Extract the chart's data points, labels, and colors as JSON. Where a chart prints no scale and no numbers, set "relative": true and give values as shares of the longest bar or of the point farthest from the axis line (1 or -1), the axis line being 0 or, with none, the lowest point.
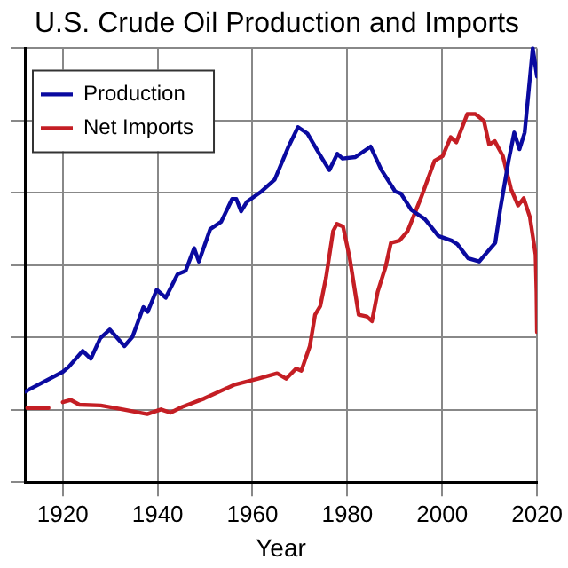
{
  "chart_data": {
    "type": "line",
    "title": "U.S. Crude Oil Production and Imports",
    "xlabel": "Year",
    "relative": true,
    "xlim": [
      1912,
      2020
    ],
    "xticks": [
      1920,
      1940,
      1960,
      1980,
      2000,
      2020
    ],
    "grid": true,
    "legend": "top left",
    "marker": "none",
    "line_style": "solid",
    "series": [
      {
        "name": "Production",
        "color": "#0a0aa0",
        "x": [
          1912,
          1920,
          1921.2,
          1924.2,
          1925.9,
          1927.9,
          1929.9,
          1933,
          1934.7,
          1937,
          1937.9,
          1939.8,
          1941.7,
          1944.2,
          1945.9,
          1947.7,
          1948.7,
          1951.1,
          1953.4,
          1955.7,
          1956.6,
          1957.6,
          1958.8,
          1961.9,
          1964.7,
          1967.6,
          1969.6,
          1971.6,
          1974.1,
          1976.2,
          1977.9,
          1979,
          1981.7,
          1984.9,
          1987.2,
          1990.1,
          1991.3,
          1993.5,
          1996.4,
          1999.2,
          2002,
          2003.2,
          2005.5,
          2007.8,
          2009.5,
          2011.2,
          2012.3,
          2014,
          2015.2,
          2016.3,
          2017.4,
          2019.1,
          2020
        ],
        "values": [
          0.05,
          0.105,
          0.118,
          0.163,
          0.141,
          0.198,
          0.222,
          0.176,
          0.202,
          0.284,
          0.271,
          0.332,
          0.31,
          0.375,
          0.384,
          0.447,
          0.41,
          0.5,
          0.52,
          0.583,
          0.583,
          0.549,
          0.575,
          0.604,
          0.637,
          0.728,
          0.782,
          0.764,
          0.708,
          0.663,
          0.708,
          0.695,
          0.699,
          0.728,
          0.663,
          0.604,
          0.598,
          0.553,
          0.527,
          0.481,
          0.468,
          0.458,
          0.419,
          0.41,
          0.436,
          0.462,
          0.559,
          0.689,
          0.767,
          0.721,
          0.767,
          1,
          0.922
        ]
      },
      {
        "name": "Net Imports",
        "color": "#c41e24",
        "x": [
          1912.5,
          1917,
          1918.5,
          1920,
          1921.7,
          1923.5,
          1928,
          1932.7,
          1937.8,
          1940.7,
          1942.7,
          1945.2,
          1949.8,
          1956.1,
          1961.2,
          1965.2,
          1967.1,
          1969.2,
          1970.3,
          1972.1,
          1973.2,
          1974.3,
          1975.5,
          1977,
          1977.8,
          1979.1,
          1980.5,
          1982.4,
          1984.1,
          1985.2,
          1986.4,
          1988.1,
          1989.2,
          1991,
          1992.7,
          1995.5,
          1998.4,
          2000.1,
          2001.8,
          2003,
          2005.3,
          2007,
          2008.8,
          2009.9,
          2011.1,
          2012.8,
          2014.5,
          2016,
          2017.2,
          2018.5,
          2019.7,
          2019.9,
          2020
        ],
        "values": [
          0.005,
          0.005,
          null,
          0.021,
          0.027,
          0.014,
          0.012,
          0.001,
          -0.012,
          0.001,
          -0.008,
          0.008,
          0.031,
          0.069,
          0.086,
          0.101,
          0.086,
          0.114,
          0.108,
          0.176,
          0.263,
          0.287,
          0.365,
          0.494,
          0.514,
          0.507,
          0.42,
          0.263,
          0.258,
          0.245,
          0.326,
          0.397,
          0.462,
          0.468,
          0.494,
          0.585,
          0.689,
          0.702,
          0.754,
          0.74,
          0.818,
          0.818,
          0.799,
          0.734,
          0.743,
          0.702,
          0.611,
          0.565,
          0.585,
          0.533,
          0.429,
          0.326,
          0.215
        ]
      }
    ]
  }
}
